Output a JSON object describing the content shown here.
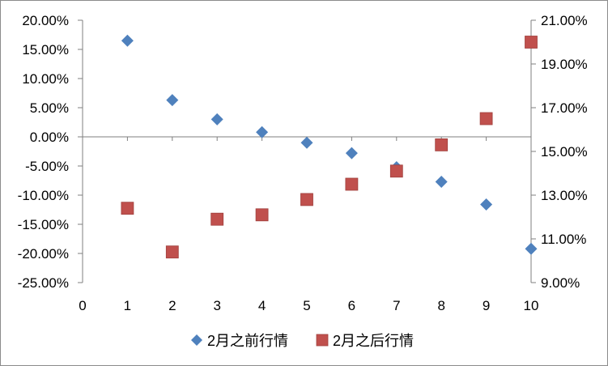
{
  "chart_data": {
    "type": "scatter",
    "series": [
      {
        "name": "2月之前行情",
        "axis": "left",
        "marker": "diamond",
        "color": "#4f81bd",
        "x": [
          1,
          2,
          3,
          4,
          5,
          6,
          7,
          8,
          9,
          10
        ],
        "y": [
          16.5,
          6.3,
          3.0,
          0.8,
          -1.0,
          -2.8,
          -5.2,
          -7.7,
          -11.6,
          -19.2
        ]
      },
      {
        "name": "2月之后行情",
        "axis": "right",
        "marker": "square",
        "color": "#c0504d",
        "x": [
          1,
          2,
          3,
          4,
          5,
          6,
          7,
          8,
          9,
          10
        ],
        "y": [
          12.4,
          10.4,
          11.9,
          12.1,
          12.8,
          13.5,
          14.1,
          15.3,
          16.5,
          20.0
        ]
      }
    ],
    "xlim": [
      0,
      10
    ],
    "x_ticks": [
      "0",
      "1",
      "2",
      "3",
      "4",
      "5",
      "6",
      "7",
      "8",
      "9",
      "10"
    ],
    "y_left": {
      "lim": [
        -25,
        20
      ],
      "ticks": [
        20,
        15,
        10,
        5,
        0,
        -5,
        -10,
        -15,
        -20,
        -25
      ],
      "tick_labels": [
        "20.00%",
        "15.00%",
        "10.00%",
        "5.00%",
        "0.00%",
        "-5.00%",
        "-10.00%",
        "-15.00%",
        "-20.00%",
        "-25.00%"
      ]
    },
    "y_right": {
      "lim": [
        9,
        21
      ],
      "ticks": [
        21,
        19,
        17,
        15,
        13,
        11,
        9
      ],
      "tick_labels": [
        "21.00%",
        "19.00%",
        "17.00%",
        "15.00%",
        "13.00%",
        "11.00%",
        "9.00%"
      ]
    },
    "grid": false,
    "legend_position": "bottom"
  }
}
